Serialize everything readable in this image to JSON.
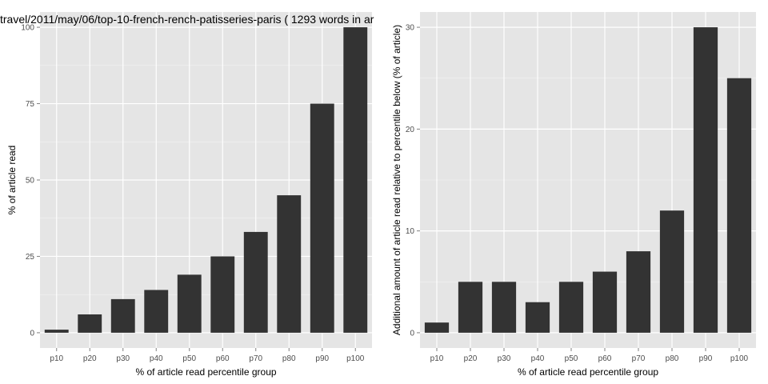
{
  "chart_data": [
    {
      "type": "bar",
      "title": "travel/2011/may/06/top-10-french-rench-patisseries-paris ( 1293 words in ar",
      "xlabel": "% of article read percentile group",
      "ylabel": "% of article read",
      "categories": [
        "p10",
        "p20",
        "p30",
        "p40",
        "p50",
        "p60",
        "p70",
        "p80",
        "p90",
        "p100"
      ],
      "values": [
        1,
        6,
        11,
        14,
        19,
        25,
        33,
        45,
        75,
        100
      ],
      "ylim": [
        -5,
        105
      ],
      "yticks": [
        0,
        25,
        50,
        75,
        100
      ],
      "grid": true
    },
    {
      "type": "bar",
      "title": "",
      "xlabel": "% of article read percentile group",
      "ylabel": "Additional amount of article read relative to percentile below (% of article)",
      "categories": [
        "p10",
        "p20",
        "p30",
        "p40",
        "p50",
        "p60",
        "p70",
        "p80",
        "p90",
        "p100"
      ],
      "values": [
        1,
        5,
        5,
        3,
        5,
        6,
        8,
        12,
        30,
        25
      ],
      "ylim": [
        -1.5,
        31.5
      ],
      "yticks": [
        0,
        10,
        20,
        30
      ],
      "grid": true
    }
  ],
  "colors": {
    "panel": "#e5e5e5",
    "grid_major": "#ffffff",
    "grid_minor": "#f2f2f2",
    "bar": "#333333"
  }
}
